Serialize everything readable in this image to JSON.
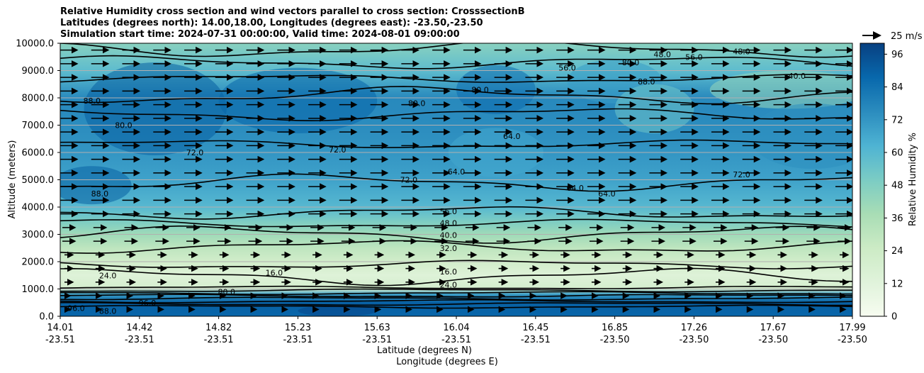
{
  "title": {
    "line1": "Relative Humidity cross section and wind vectors parallel to cross section: CrosssectionB",
    "line2": "Latitudes (degrees north): 14.00,18.00, Longitudes (degrees east): -23.50,-23.50",
    "line3": "Simulation start time: 2024-07-31 00:00:00, Valid time: 2024-08-01 09:00:00"
  },
  "quiver_key_label": "25 m/s",
  "chart_data": {
    "type": "heatmap",
    "ylabel": "Altitude (meters)",
    "xlabel_lat": "Latitude (degrees N)",
    "xlabel_lon": "Longitude (degrees E)",
    "ylim": [
      0,
      10000
    ],
    "y_ticks": [
      "0.0",
      "1000.0",
      "2000.0",
      "3000.0",
      "4000.0",
      "5000.0",
      "6000.0",
      "7000.0",
      "8000.0",
      "9000.0",
      "10000.0"
    ],
    "x_ticks": [
      {
        "lat": "14.01",
        "lon": "-23.51"
      },
      {
        "lat": "14.42",
        "lon": "-23.51"
      },
      {
        "lat": "14.82",
        "lon": "-23.51"
      },
      {
        "lat": "15.23",
        "lon": "-23.51"
      },
      {
        "lat": "15.63",
        "lon": "-23.51"
      },
      {
        "lat": "16.04",
        "lon": "-23.51"
      },
      {
        "lat": "16.45",
        "lon": "-23.51"
      },
      {
        "lat": "16.85",
        "lon": "-23.50"
      },
      {
        "lat": "17.26",
        "lon": "-23.50"
      },
      {
        "lat": "17.67",
        "lon": "-23.50"
      },
      {
        "lat": "17.99",
        "lon": "-23.50"
      }
    ],
    "colorbar": {
      "label": "Relative Humidity %",
      "ticks": [
        "0",
        "12",
        "24",
        "36",
        "48",
        "60",
        "72",
        "84",
        "96"
      ],
      "range": [
        0,
        100
      ]
    },
    "grid": "horizontal",
    "contour_labels": [
      "16.0",
      "24.0",
      "32.0",
      "40.0",
      "48.0",
      "56.0",
      "64.0",
      "72.0",
      "80.0",
      "88.0",
      "96.0"
    ],
    "rh_profile": [
      {
        "alt": 0,
        "rh": 88
      },
      {
        "alt": 500,
        "rh": 90
      },
      {
        "alt": 800,
        "rh": 70
      },
      {
        "alt": 1000,
        "rh": 20
      },
      {
        "alt": 1500,
        "rh": 14
      },
      {
        "alt": 2000,
        "rh": 22
      },
      {
        "alt": 2500,
        "rh": 30
      },
      {
        "alt": 3000,
        "rh": 40
      },
      {
        "alt": 3500,
        "rh": 50
      },
      {
        "alt": 4000,
        "rh": 60
      },
      {
        "alt": 5000,
        "rh": 68
      },
      {
        "alt": 6000,
        "rh": 72
      },
      {
        "alt": 7000,
        "rh": 75
      },
      {
        "alt": 8000,
        "rh": 76
      },
      {
        "alt": 9000,
        "rh": 58
      },
      {
        "alt": 10000,
        "rh": 46
      }
    ]
  },
  "colors": {
    "colormap": [
      "#f7fcf0",
      "#e0f3db",
      "#ccebc5",
      "#a8ddb5",
      "#7bccc4",
      "#4eb3d3",
      "#2b8cbe",
      "#0868ac",
      "#084081"
    ],
    "contour": "#000000",
    "grid": "#b0b0b0"
  }
}
